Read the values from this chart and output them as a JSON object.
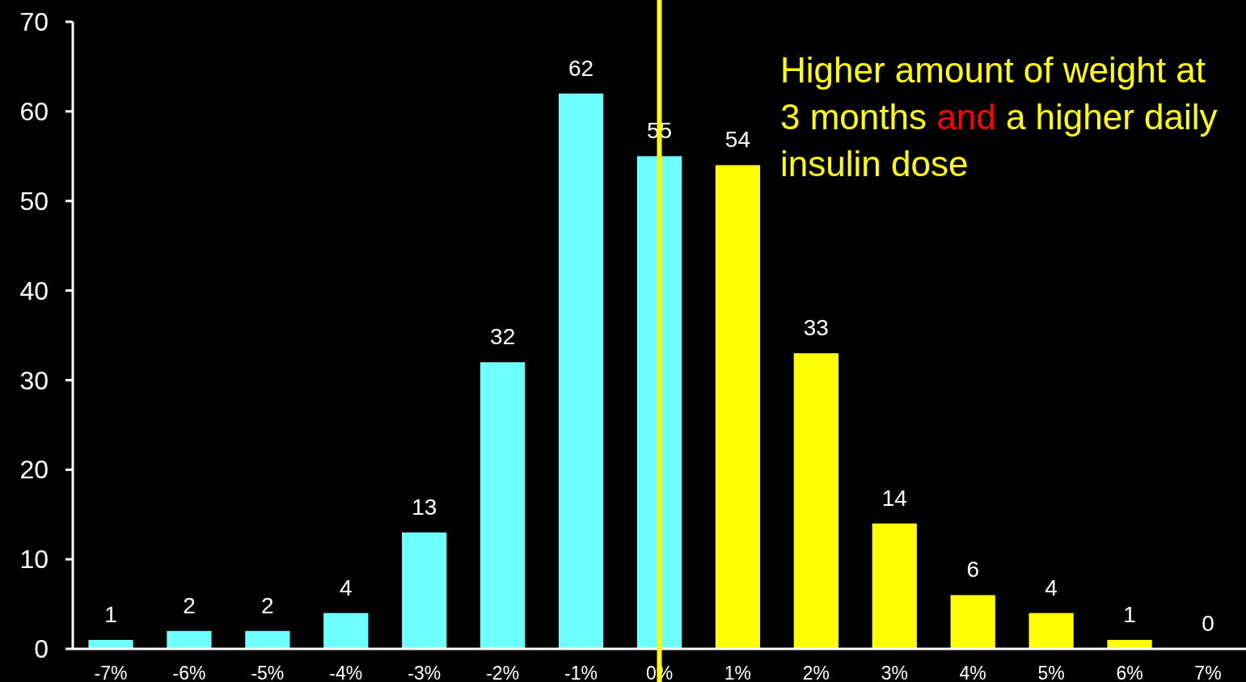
{
  "chart_data": {
    "type": "bar",
    "categories": [
      "-7%",
      "-6%",
      "-5%",
      "-4%",
      "-3%",
      "-2%",
      "-1%",
      "0%",
      "1%",
      "2%",
      "3%",
      "4%",
      "5%",
      "6%",
      "7%"
    ],
    "values": [
      1,
      2,
      2,
      4,
      13,
      32,
      62,
      55,
      54,
      33,
      14,
      6,
      4,
      1,
      0
    ],
    "colors": [
      "#6effff",
      "#6effff",
      "#6effff",
      "#6effff",
      "#6effff",
      "#6effff",
      "#6effff",
      "#6effff",
      "#ffff00",
      "#ffff00",
      "#ffff00",
      "#ffff00",
      "#ffff00",
      "#ffff00",
      "#ffff00"
    ],
    "ylim": [
      0,
      70
    ],
    "yticks": [
      0,
      10,
      20,
      30,
      40,
      50,
      60,
      70
    ],
    "data_labels": true,
    "grid": false,
    "ref_lines": [
      {
        "axis": "x",
        "value": "0%",
        "color": "#ffff00"
      }
    ],
    "annotations": [
      "Higher amount of weight at 3 months ",
      "and",
      "a higher daily insulin dose"
    ]
  }
}
